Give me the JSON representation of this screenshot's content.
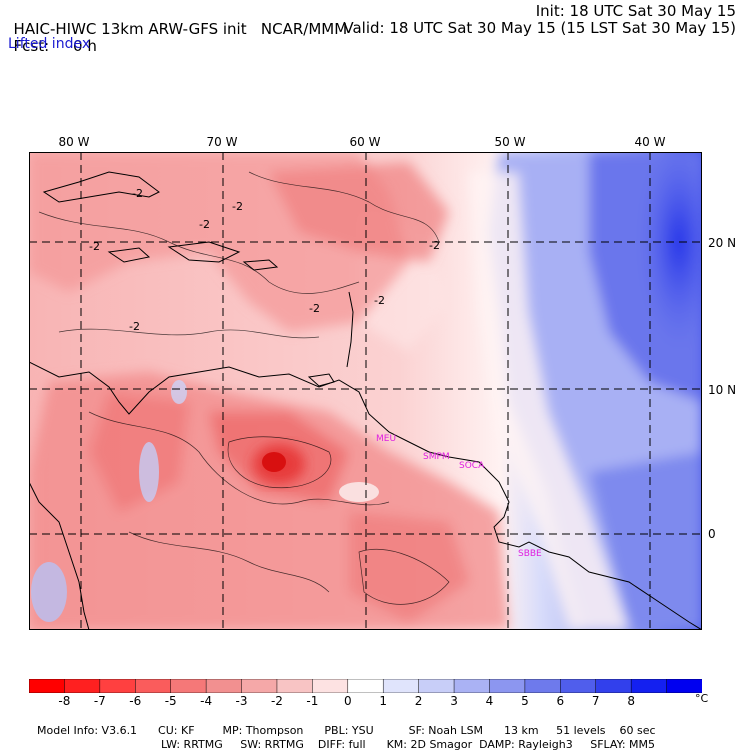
{
  "header": {
    "model": "HAIC-HIWC 13km ARW-GFS init",
    "org": "NCAR/MMM",
    "fcst_label": "Fcst:",
    "fcst_value": "0 h",
    "init": "Init: 18 UTC Sat 30 May 15",
    "valid": "Valid: 18 UTC Sat 30 May 15 (15 LST Sat 30 May 15)",
    "field": "Lifted index"
  },
  "map": {
    "lon_labels": [
      "80 W",
      "70 W",
      "60 W",
      "50 W",
      "40 W"
    ],
    "lat_labels": [
      "20 N",
      "10 N",
      "0"
    ],
    "contour_labels": [
      "-2",
      "-2",
      "-2",
      "-2",
      "-2",
      "-2",
      "-2",
      "-2"
    ],
    "station_labels": [
      "MEU",
      "SMPM",
      "SOCA",
      "SBBE"
    ],
    "colors": {
      "strong_negative": "#e01818",
      "negative": "#f08c8c",
      "near_zero": "#fff0f0",
      "positive": "#c8d0f8",
      "strong_positive": "#2838e8",
      "station": "#e020e0",
      "coast": "#000000"
    }
  },
  "colorbar": {
    "ticks": [
      "-8",
      "-7",
      "-6",
      "-5",
      "-4",
      "-3",
      "-2",
      "-1",
      "0",
      "1",
      "2",
      "3",
      "4",
      "5",
      "6",
      "7",
      "8"
    ],
    "unit": "°C",
    "colors": [
      "#ff0000",
      "#ff2020",
      "#ff4040",
      "#fa5c5c",
      "#f57878",
      "#f29090",
      "#f5a8a8",
      "#f8c4c4",
      "#fde2e2",
      "#ffffff",
      "#e0e4fc",
      "#c8cef8",
      "#aab2f4",
      "#8c96f0",
      "#6e7aec",
      "#505eec",
      "#3240ec",
      "#1420f0",
      "#0000f0"
    ]
  },
  "model_info": {
    "line1": [
      "Model Info: V3.6.1",
      "CU: KF",
      "MP: Thompson",
      "PBL: YSU",
      "SF: Noah LSM",
      "13 km",
      "51 levels",
      "60 sec"
    ],
    "line2": [
      "LW: RRTMG",
      "SW: RRTMG",
      "DIFF: full",
      "KM: 2D Smagor",
      "DAMP: Rayleigh3",
      "SFLAY: MM5"
    ]
  }
}
